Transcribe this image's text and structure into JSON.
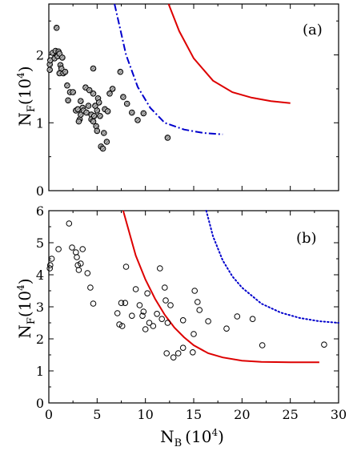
{
  "chart_data": [
    {
      "id": "a",
      "type": "scatter",
      "panel_label": "(a)",
      "ylabel": {
        "main": "N",
        "sub": "F",
        "unit_open": "(10",
        "sup": "4",
        "unit_close": ")"
      },
      "xlabel": null,
      "xlim": [
        0,
        30
      ],
      "ylim": [
        0,
        2.75
      ],
      "x_ticks": [],
      "y_ticks": [
        0,
        1,
        2
      ],
      "y_tick_labels": [
        "0",
        "1",
        "2"
      ],
      "grid": false,
      "marker": {
        "style": "hatched-circle",
        "fill": "#aaaaaa",
        "stroke": "#000000"
      },
      "points": [
        [
          0.1,
          1.78
        ],
        [
          0.1,
          1.86
        ],
        [
          0.15,
          1.92
        ],
        [
          0.6,
          1.95
        ],
        [
          0.4,
          2.03
        ],
        [
          0.7,
          2.06
        ],
        [
          0.8,
          2.4
        ],
        [
          0.9,
          1.98
        ],
        [
          1.0,
          2.05
        ],
        [
          1.1,
          2.02
        ],
        [
          1.2,
          1.85
        ],
        [
          1.3,
          1.8
        ],
        [
          1.1,
          1.73
        ],
        [
          1.5,
          1.73
        ],
        [
          1.7,
          1.75
        ],
        [
          1.4,
          1.96
        ],
        [
          1.9,
          1.55
        ],
        [
          2.2,
          1.45
        ],
        [
          2.0,
          1.33
        ],
        [
          2.5,
          1.45
        ],
        [
          2.8,
          1.18
        ],
        [
          3.0,
          1.2
        ],
        [
          3.2,
          1.05
        ],
        [
          3.1,
          1.02
        ],
        [
          3.3,
          1.32
        ],
        [
          3.3,
          1.12
        ],
        [
          3.5,
          1.22
        ],
        [
          3.6,
          1.18
        ],
        [
          3.8,
          1.52
        ],
        [
          3.9,
          1.15
        ],
        [
          4.2,
          1.48
        ],
        [
          4.1,
          1.25
        ],
        [
          4.4,
          1.12
        ],
        [
          4.4,
          1.05
        ],
        [
          4.6,
          1.43
        ],
        [
          4.6,
          1.02
        ],
        [
          4.7,
          1.1
        ],
        [
          4.8,
          1.25
        ],
        [
          4.9,
          0.95
        ],
        [
          5.0,
          0.88
        ],
        [
          5.0,
          1.18
        ],
        [
          5.1,
          1.36
        ],
        [
          5.2,
          1.3
        ],
        [
          5.3,
          1.1
        ],
        [
          5.4,
          0.65
        ],
        [
          5.6,
          0.62
        ],
        [
          5.7,
          0.85
        ],
        [
          5.8,
          1.2
        ],
        [
          6.0,
          0.72
        ],
        [
          6.1,
          1.17
        ],
        [
          6.3,
          1.43
        ],
        [
          6.6,
          1.5
        ],
        [
          7.4,
          1.75
        ],
        [
          7.7,
          1.38
        ],
        [
          8.1,
          1.28
        ],
        [
          8.6,
          1.15
        ],
        [
          9.2,
          1.04
        ],
        [
          9.8,
          1.14
        ],
        [
          12.3,
          0.78
        ],
        [
          4.6,
          1.8
        ]
      ],
      "curves": [
        {
          "style": "dash-dot",
          "color": "#0000cc",
          "points": [
            [
              6.8,
              2.75
            ],
            [
              8.0,
              2.0
            ],
            [
              9.2,
              1.53
            ],
            [
              10.5,
              1.22
            ],
            [
              12.0,
              1.0
            ],
            [
              14.0,
              0.9
            ],
            [
              16.0,
              0.85
            ],
            [
              18.0,
              0.83
            ]
          ]
        },
        {
          "style": "solid",
          "color": "#dd0000",
          "points": [
            [
              12.4,
              2.75
            ],
            [
              13.5,
              2.35
            ],
            [
              15.0,
              1.95
            ],
            [
              17.0,
              1.62
            ],
            [
              19.0,
              1.45
            ],
            [
              21.0,
              1.37
            ],
            [
              23.0,
              1.32
            ],
            [
              25.0,
              1.29
            ]
          ]
        }
      ]
    },
    {
      "id": "b",
      "type": "scatter",
      "panel_label": "(b)",
      "ylabel": {
        "main": "N",
        "sub": "F",
        "unit_open": "(10",
        "sup": "4",
        "unit_close": ")"
      },
      "xlabel": {
        "main": "N",
        "sub": "B",
        "unit_open": "(10",
        "sup": "4",
        "unit_close": ")"
      },
      "xlim": [
        0,
        30
      ],
      "ylim": [
        0,
        6
      ],
      "x_ticks": [
        0,
        5,
        10,
        15,
        20,
        25,
        30
      ],
      "x_tick_labels": [
        "0",
        "5",
        "10",
        "15",
        "20",
        "25",
        "30"
      ],
      "y_ticks": [
        0,
        1,
        2,
        3,
        4,
        5,
        6
      ],
      "y_tick_labels": [
        "0",
        "1",
        "2",
        "3",
        "4",
        "5",
        "6"
      ],
      "grid": false,
      "marker": {
        "style": "open-circle",
        "fill": "none",
        "stroke": "#000000"
      },
      "points": [
        [
          0.1,
          4.2
        ],
        [
          0.15,
          4.3
        ],
        [
          0.3,
          4.5
        ],
        [
          1.0,
          4.8
        ],
        [
          2.1,
          5.6
        ],
        [
          2.4,
          4.85
        ],
        [
          2.8,
          4.7
        ],
        [
          2.9,
          4.55
        ],
        [
          3.0,
          4.3
        ],
        [
          3.1,
          4.15
        ],
        [
          3.3,
          4.35
        ],
        [
          3.5,
          4.8
        ],
        [
          4.0,
          4.05
        ],
        [
          4.3,
          3.6
        ],
        [
          4.6,
          3.1
        ],
        [
          7.1,
          2.8
        ],
        [
          7.3,
          2.45
        ],
        [
          7.6,
          2.4
        ],
        [
          7.5,
          3.12
        ],
        [
          7.9,
          3.12
        ],
        [
          8.0,
          4.25
        ],
        [
          8.6,
          2.72
        ],
        [
          9.0,
          3.55
        ],
        [
          9.4,
          3.05
        ],
        [
          9.7,
          2.72
        ],
        [
          9.8,
          2.85
        ],
        [
          10.0,
          2.3
        ],
        [
          10.2,
          3.42
        ],
        [
          10.4,
          2.5
        ],
        [
          10.8,
          2.4
        ],
        [
          11.2,
          2.78
        ],
        [
          11.5,
          4.2
        ],
        [
          11.7,
          2.62
        ],
        [
          12.0,
          3.6
        ],
        [
          12.1,
          3.2
        ],
        [
          12.3,
          2.5
        ],
        [
          12.2,
          1.55
        ],
        [
          12.6,
          3.05
        ],
        [
          12.9,
          1.42
        ],
        [
          13.4,
          1.55
        ],
        [
          13.9,
          2.58
        ],
        [
          13.9,
          1.72
        ],
        [
          14.9,
          1.58
        ],
        [
          15.0,
          2.15
        ],
        [
          15.1,
          3.5
        ],
        [
          15.4,
          3.15
        ],
        [
          15.6,
          2.9
        ],
        [
          16.5,
          2.55
        ],
        [
          18.4,
          2.32
        ],
        [
          19.5,
          2.7
        ],
        [
          21.1,
          2.62
        ],
        [
          22.1,
          1.8
        ],
        [
          28.5,
          1.82
        ]
      ],
      "curves": [
        {
          "style": "solid",
          "color": "#dd0000",
          "points": [
            [
              7.7,
              6.0
            ],
            [
              9.0,
              4.6
            ],
            [
              10.0,
              3.85
            ],
            [
              11.0,
              3.25
            ],
            [
              12.0,
              2.75
            ],
            [
              13.0,
              2.35
            ],
            [
              14.0,
              2.05
            ],
            [
              15.0,
              1.8
            ],
            [
              16.5,
              1.55
            ],
            [
              18.0,
              1.42
            ],
            [
              20.0,
              1.32
            ],
            [
              22.0,
              1.28
            ],
            [
              25.0,
              1.27
            ],
            [
              28.0,
              1.27
            ]
          ]
        },
        {
          "style": "dotted",
          "color": "#0000cc",
          "points": [
            [
              16.3,
              6.0
            ],
            [
              17.0,
              5.2
            ],
            [
              18.0,
              4.45
            ],
            [
              19.0,
              3.95
            ],
            [
              20.0,
              3.6
            ],
            [
              22.0,
              3.1
            ],
            [
              24.0,
              2.82
            ],
            [
              26.0,
              2.65
            ],
            [
              28.0,
              2.55
            ],
            [
              30.0,
              2.5
            ]
          ]
        }
      ]
    }
  ]
}
